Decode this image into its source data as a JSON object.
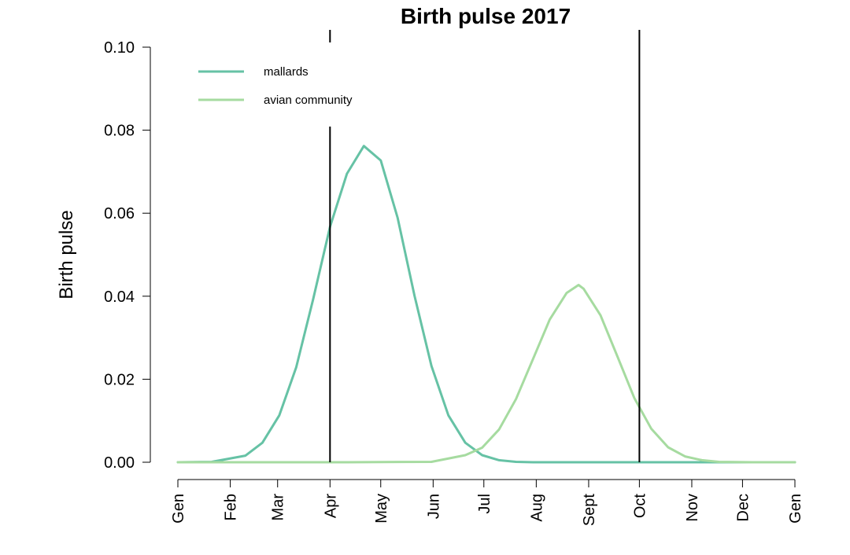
{
  "chart_data": {
    "type": "line",
    "title": "Birth pulse 2017",
    "xlabel": "",
    "ylabel": "Birth pulse",
    "xlim": [
      0,
      365
    ],
    "ylim": [
      0,
      0.1
    ],
    "yticks": [
      0.0,
      0.02,
      0.04,
      0.06,
      0.08,
      0.1
    ],
    "ytick_labels": [
      "0.00",
      "0.02",
      "0.04",
      "0.06",
      "0.08",
      "0.10"
    ],
    "xticks": [
      0,
      31,
      59,
      90,
      120,
      151,
      181,
      212,
      243,
      273,
      304,
      334,
      365
    ],
    "xtick_labels": [
      "Gen",
      "Feb",
      "Mar",
      "Apr",
      "May",
      "Jun",
      "Jul",
      "Aug",
      "Sept",
      "Oct",
      "Nov",
      "Dec",
      "Gen"
    ],
    "vlines": [
      90,
      273
    ],
    "legend_position": "top-left",
    "grid": false,
    "series": [
      {
        "name": "mallards",
        "color": "#66c2a5",
        "x": [
          0,
          20,
          40,
          50,
          60,
          70,
          80,
          90,
          100,
          110,
          120,
          130,
          140,
          150,
          160,
          170,
          180,
          190,
          200,
          210,
          230,
          260,
          300,
          365
        ],
        "y": [
          0.0,
          0.0001,
          0.0016,
          0.0047,
          0.0113,
          0.0229,
          0.0392,
          0.0567,
          0.0695,
          0.0762,
          0.0727,
          0.0589,
          0.0401,
          0.0232,
          0.0113,
          0.0047,
          0.0017,
          0.0005,
          0.0001,
          0.0,
          0.0,
          0.0,
          0.0,
          0.0
        ]
      },
      {
        "name": "avian community",
        "color": "#a6dba0",
        "x": [
          0,
          100,
          150,
          170,
          180,
          190,
          200,
          210,
          220,
          230,
          237,
          240,
          250,
          260,
          270,
          280,
          290,
          300,
          310,
          320,
          340,
          365
        ],
        "y": [
          0.0,
          0.0,
          0.0001,
          0.0017,
          0.0035,
          0.0079,
          0.0152,
          0.0248,
          0.0344,
          0.0408,
          0.0427,
          0.0418,
          0.0354,
          0.0255,
          0.0155,
          0.0081,
          0.0036,
          0.0014,
          0.0005,
          0.0001,
          0.0,
          0.0
        ]
      }
    ]
  }
}
